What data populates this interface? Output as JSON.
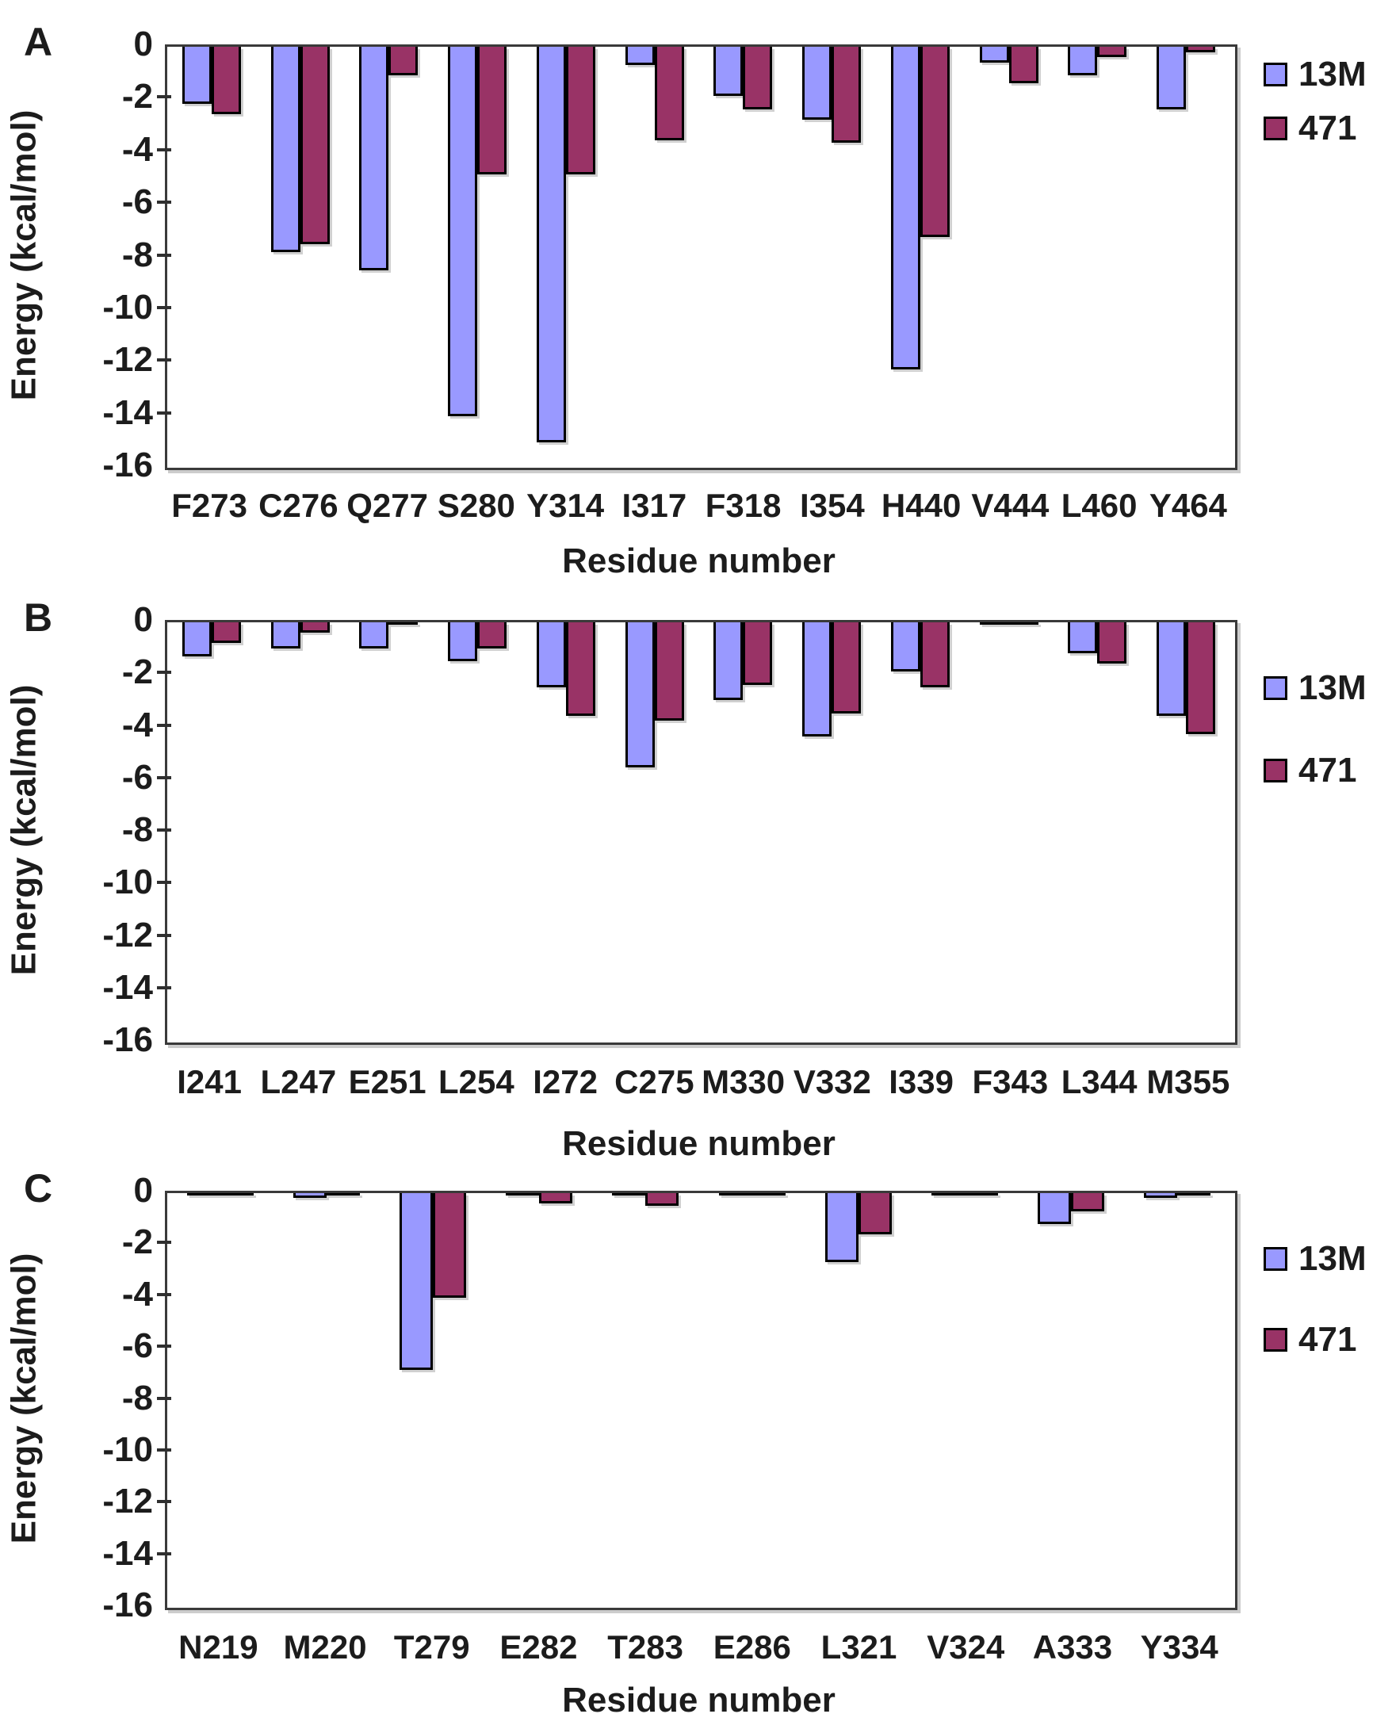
{
  "figure": {
    "ylabel": "Energy (kcal/mol)",
    "xlabel": "Residue number",
    "y_ticks": [
      "0",
      "-2",
      "-4",
      "-6",
      "-8",
      "-10",
      "-12",
      "-14",
      "-16"
    ],
    "series_colors": {
      "13M": "#9999FF",
      "471": "#993366"
    },
    "axis_color": "#3a3a3a",
    "text_color": "#1c1c1c"
  },
  "chart_data": [
    {
      "panel": "A",
      "type": "bar",
      "title": "",
      "xlabel": "Residue number",
      "ylabel": "Energy (kcal/mol)",
      "ylim": [
        0,
        -16
      ],
      "grid": false,
      "legend_position": "right-top",
      "categories": [
        "F273",
        "C276",
        "Q277",
        "S280",
        "Y314",
        "I317",
        "F318",
        "I354",
        "H440",
        "V444",
        "L460",
        "Y464"
      ],
      "series": [
        {
          "name": "13M",
          "color": "#9999FF",
          "values": [
            -2.2,
            -7.9,
            -8.6,
            -14.2,
            -15.2,
            -0.7,
            -1.9,
            -2.8,
            -12.4,
            -0.6,
            -1.1,
            -2.4
          ]
        },
        {
          "name": "471",
          "color": "#993366",
          "values": [
            -2.6,
            -7.6,
            -1.1,
            -4.9,
            -4.9,
            -3.6,
            -2.4,
            -3.7,
            -7.3,
            -1.4,
            -0.4,
            -0.2
          ]
        }
      ]
    },
    {
      "panel": "B",
      "type": "bar",
      "title": "",
      "xlabel": "Residue number",
      "ylabel": "Energy (kcal/mol)",
      "ylim": [
        0,
        -16
      ],
      "grid": false,
      "legend_position": "right-top",
      "categories": [
        "I241",
        "L247",
        "E251",
        "L254",
        "I272",
        "C275",
        "M330",
        "V332",
        "I339",
        "F343",
        "L344",
        "M355"
      ],
      "series": [
        {
          "name": "13M",
          "color": "#9999FF",
          "values": [
            -1.3,
            -1.0,
            -1.0,
            -1.5,
            -2.5,
            -5.6,
            -3.0,
            -4.4,
            -1.9,
            -0.1,
            -1.2,
            -3.6
          ]
        },
        {
          "name": "471",
          "color": "#993366",
          "values": [
            -0.8,
            -0.4,
            -0.1,
            -1.0,
            -3.6,
            -3.8,
            -2.4,
            -3.5,
            -2.5,
            -0.1,
            -1.6,
            -4.3
          ]
        }
      ]
    },
    {
      "panel": "C",
      "type": "bar",
      "title": "",
      "xlabel": "Residue number",
      "ylabel": "Energy (kcal/mol)",
      "ylim": [
        0,
        -16
      ],
      "grid": false,
      "legend_position": "right-top",
      "categories": [
        "N219",
        "M220",
        "T279",
        "E282",
        "T283",
        "E286",
        "L321",
        "V324",
        "A333",
        "Y334"
      ],
      "series": [
        {
          "name": "13M",
          "color": "#9999FF",
          "values": [
            -0.1,
            -0.2,
            -6.9,
            -0.1,
            -0.1,
            -0.1,
            -2.7,
            -0.1,
            -1.2,
            -0.2
          ]
        },
        {
          "name": "471",
          "color": "#993366",
          "values": [
            -0.1,
            -0.1,
            -4.1,
            -0.4,
            -0.5,
            -0.1,
            -1.6,
            -0.1,
            -0.7,
            -0.1
          ]
        }
      ]
    }
  ]
}
